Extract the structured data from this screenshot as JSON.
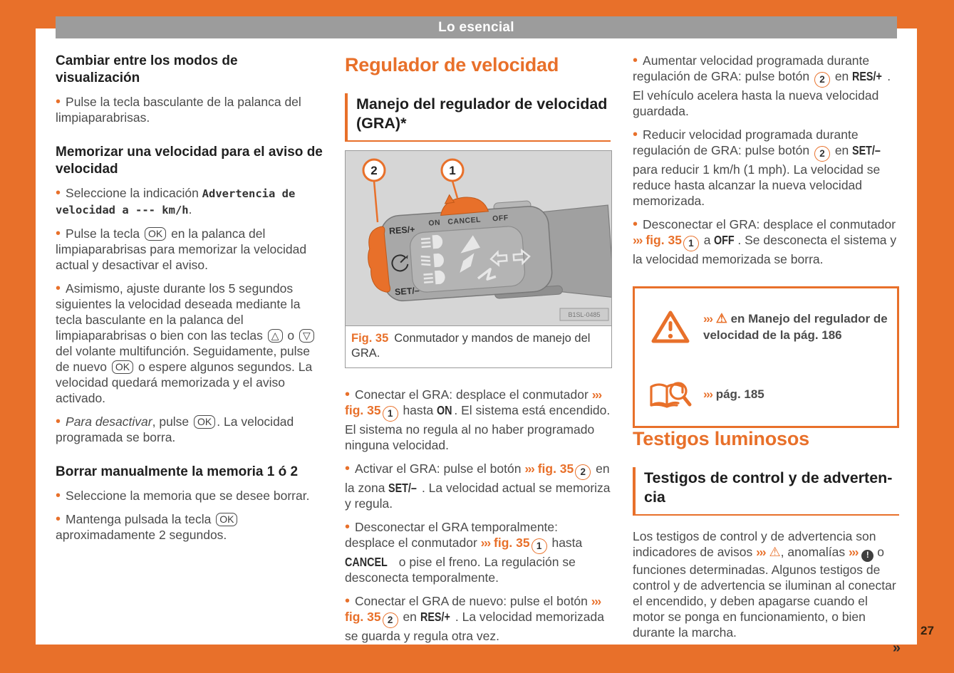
{
  "colors": {
    "accent": "#e8702a",
    "header_bar": "#9c9c9c",
    "body_text": "#4b4b4b",
    "figure_bg": "#d6d6d6"
  },
  "header": {
    "title": "Lo esencial"
  },
  "page_number": "27",
  "continuation": "»",
  "col1": {
    "h1": "Cambiar entre los modos de visualización",
    "b1": [
      {
        "s": "p",
        "t": "Pulse la tecla basculante de la palanca del limpiaparabrisas."
      }
    ],
    "h2": "Memorizar una velocidad para el aviso de velocidad",
    "b2": [
      {
        "s": "p",
        "t": "Seleccione la indicación "
      },
      {
        "s": "mono",
        "t": "Advertencia de velocidad a --- km/h"
      },
      {
        "s": "p",
        "t": "."
      }
    ],
    "b3": [
      {
        "s": "p",
        "t": "Pulse la tecla "
      },
      {
        "s": "key",
        "t": "OK"
      },
      {
        "s": "p",
        "t": " en la palanca del limpiaparabrisas para memorizar la velocidad actual y desactivar el aviso."
      }
    ],
    "b4": [
      {
        "s": "p",
        "t": "Asimismo, ajuste durante los 5 segundos siguientes la velocidad deseada mediante la tecla basculante en la palanca del limpiaparabrisas o bien con las teclas "
      },
      {
        "s": "key",
        "t": "△"
      },
      {
        "s": "p",
        "t": " o "
      },
      {
        "s": "key",
        "t": "▽"
      },
      {
        "s": "p",
        "t": " del volante multifunción. Seguidamente, pulse de nuevo "
      },
      {
        "s": "key",
        "t": "OK"
      },
      {
        "s": "p",
        "t": " o espere algunos segundos. La velocidad quedará memorizada y el aviso activado."
      }
    ],
    "b5": [
      {
        "s": "i",
        "t": "Para desactivar"
      },
      {
        "s": "p",
        "t": ", pulse "
      },
      {
        "s": "key",
        "t": "OK"
      },
      {
        "s": "p",
        "t": ". La velocidad programada se borra."
      }
    ],
    "h3": "Borrar manualmente la memoria 1 ó 2",
    "b6": [
      {
        "s": "p",
        "t": "Seleccione la memoria que se desee borrar."
      }
    ],
    "b7": [
      {
        "s": "p",
        "t": "Mantenga pulsada la tecla "
      },
      {
        "s": "key",
        "t": "OK"
      },
      {
        "s": "p",
        "t": " aproximadamente 2 segundos."
      }
    ]
  },
  "col2": {
    "title": "Regulador de velocidad",
    "subtitle": "Manejo del regulador de velocidad (GRA)*",
    "figure": {
      "caption_ref": "Fig. 35",
      "caption_text": "Conmutador y mandos de manejo del GRA.",
      "labels": {
        "callout1": "1",
        "callout2": "2",
        "res": "RES/+",
        "set": "SET/–",
        "on": "ON",
        "cancel": "CANCEL",
        "off": "OFF",
        "code": "B1SL-0485"
      }
    },
    "b1": [
      {
        "s": "p",
        "t": "Conectar el GRA: desplace el conmutador "
      },
      {
        "s": "arr",
        "t": "››› "
      },
      {
        "s": "ref",
        "t": "fig. 35"
      },
      {
        "s": "cnum",
        "t": "1"
      },
      {
        "s": "p",
        "t": " hasta "
      },
      {
        "s": "din",
        "t": "ON"
      },
      {
        "s": "p",
        "t": ". El sistema está encendido. El sistema no regula al no haber programado ninguna velocidad."
      }
    ],
    "b2": [
      {
        "s": "p",
        "t": "Activar el GRA: pulse el botón "
      },
      {
        "s": "arr",
        "t": "››› "
      },
      {
        "s": "ref",
        "t": "fig. 35"
      },
      {
        "s": "cnum",
        "t": "2"
      },
      {
        "s": "p",
        "t": " en la zona "
      },
      {
        "s": "din",
        "t": "SET/–"
      },
      {
        "s": "p",
        "t": ". La velocidad actual se memoriza y regula."
      }
    ],
    "b3": [
      {
        "s": "p",
        "t": "Desconectar el GRA temporalmente: desplace el conmutador "
      },
      {
        "s": "arr",
        "t": "››› "
      },
      {
        "s": "ref",
        "t": "fig. 35"
      },
      {
        "s": "cnum",
        "t": "1"
      },
      {
        "s": "p",
        "t": " hasta "
      },
      {
        "s": "din",
        "t": "CANCEL"
      },
      {
        "s": "p",
        "t": " o pise el freno. La regulación se desconecta temporalmente."
      }
    ],
    "b4": [
      {
        "s": "p",
        "t": "Conectar el GRA de nuevo: pulse el botón "
      },
      {
        "s": "arr",
        "t": "››› "
      },
      {
        "s": "ref",
        "t": "fig. 35"
      },
      {
        "s": "cnum",
        "t": "2"
      },
      {
        "s": "p",
        "t": " en "
      },
      {
        "s": "din",
        "t": "RES/+"
      },
      {
        "s": "p",
        "t": ". La velocidad memorizada se guarda y regula otra vez."
      }
    ]
  },
  "col3": {
    "b1": [
      {
        "s": "p",
        "t": "Aumentar velocidad programada durante regulación de GRA: pulse botón "
      },
      {
        "s": "cnum",
        "t": "2"
      },
      {
        "s": "p",
        "t": " en "
      },
      {
        "s": "din",
        "t": "RES/+"
      },
      {
        "s": "p",
        "t": ". El vehículo acelera hasta la nueva velocidad guardada."
      }
    ],
    "b2": [
      {
        "s": "p",
        "t": "Reducir velocidad programada durante regulación de GRA: pulse botón "
      },
      {
        "s": "cnum",
        "t": "2"
      },
      {
        "s": "p",
        "t": " en "
      },
      {
        "s": "din",
        "t": "SET/–"
      },
      {
        "s": "p",
        "t": " para reducir 1 km/h (1 mph). La velocidad se reduce hasta alcanzar la nueva velocidad memorizada."
      }
    ],
    "b3": [
      {
        "s": "p",
        "t": "Desconectar el GRA: desplace el conmutador "
      },
      {
        "s": "arr",
        "t": "››› "
      },
      {
        "s": "ref",
        "t": "fig. 35"
      },
      {
        "s": "cnum",
        "t": "1"
      },
      {
        "s": "p",
        "t": " a "
      },
      {
        "s": "din",
        "t": "OFF"
      },
      {
        "s": "p",
        "t": ". Se desconecta el sistema y la velocidad memorizada se borra."
      }
    ],
    "note": {
      "row1": [
        {
          "s": "arr",
          "t": "››› "
        },
        {
          "s": "tri",
          "t": "⚠"
        },
        {
          "s": "b",
          "t": " en Manejo del regulador de velocidad de la pág. 186"
        }
      ],
      "row2": [
        {
          "s": "arr",
          "t": "››› "
        },
        {
          "s": "b",
          "t": "pág. 185"
        }
      ]
    },
    "title": "Testigos luminosos",
    "subtitle": "Testigos de control y de adverten­cia",
    "para": [
      {
        "s": "p",
        "t": "Los testigos de control y de advertencia son indicadores de avisos "
      },
      {
        "s": "arr",
        "t": "››› "
      },
      {
        "s": "tri",
        "t": "⚠"
      },
      {
        "s": "p",
        "t": ", anomalías "
      },
      {
        "s": "arr",
        "t": "››› "
      },
      {
        "s": "bang",
        "t": "!"
      },
      {
        "s": "p",
        "t": " o funciones determinadas. Algunos testigos de control y de advertencia se iluminan al conectar el encendido, y deben apagarse cuando el motor se ponga en funcionamiento, o bien durante la marcha."
      }
    ]
  }
}
